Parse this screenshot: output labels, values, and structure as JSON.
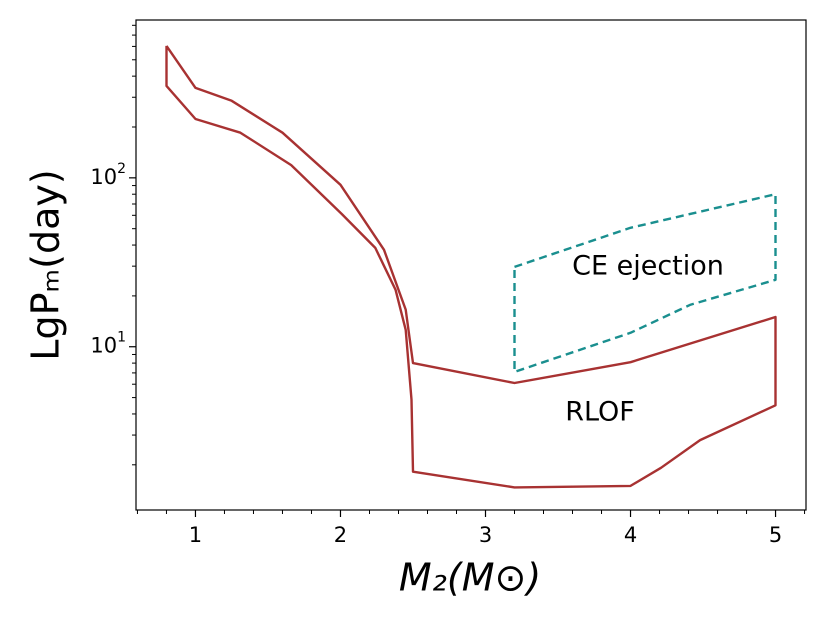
{
  "chart_data": {
    "type": "line",
    "xlabel": "M₂(M⊙)",
    "ylabel": "LgPₘ(day)",
    "xlim": [
      0.59,
      5.21
    ],
    "xticks": [
      1,
      2,
      3,
      4,
      5
    ],
    "xminorticks": [
      0.6,
      0.8,
      1.2,
      1.4,
      1.6,
      1.8,
      2.2,
      2.4,
      2.6,
      2.8,
      3.2,
      3.4,
      3.6,
      3.8,
      4.2,
      4.4,
      4.6,
      4.8,
      5.2
    ],
    "ylim": [
      1.08,
      860
    ],
    "ylog": true,
    "yticks": [
      {
        "value": 10,
        "label": "10^1"
      },
      {
        "value": 100,
        "label": "10^2"
      }
    ],
    "yminorticks": [
      2,
      3,
      4,
      5,
      6,
      7,
      8,
      9,
      20,
      30,
      40,
      50,
      60,
      70,
      80,
      90,
      200,
      300,
      400,
      500,
      600,
      700,
      800
    ],
    "series": [
      {
        "color": "#a83232",
        "dashed": false,
        "x": [
          0.8,
          1.0,
          1.25,
          1.6,
          2.0,
          2.3,
          2.45,
          2.5,
          3.2,
          4.0,
          5.0,
          5.0,
          4.48,
          4.21,
          4.0,
          3.2,
          2.5,
          2.49,
          2.45,
          2.38,
          2.24,
          2.01,
          1.66,
          1.31,
          1.0,
          0.8,
          0.8
        ],
        "values": [
          604,
          341,
          286,
          185,
          91,
          37.5,
          16.6,
          8.0,
          6.1,
          8.1,
          15,
          4.5,
          2.8,
          1.92,
          1.5,
          1.47,
          1.82,
          4.86,
          12.6,
          21.7,
          38.5,
          61,
          119,
          185,
          223,
          350,
          604
        ]
      },
      {
        "color": "#1a8f8f",
        "dashed": true,
        "x": [
          3.2,
          4.0,
          5.0,
          5.0,
          4.41,
          4.0,
          3.2,
          3.2
        ],
        "values": [
          29.7,
          50.6,
          80,
          24.9,
          17.7,
          12.1,
          7.1,
          29.7
        ]
      }
    ],
    "annotations": [
      "CE ejection",
      "RLOF"
    ]
  }
}
